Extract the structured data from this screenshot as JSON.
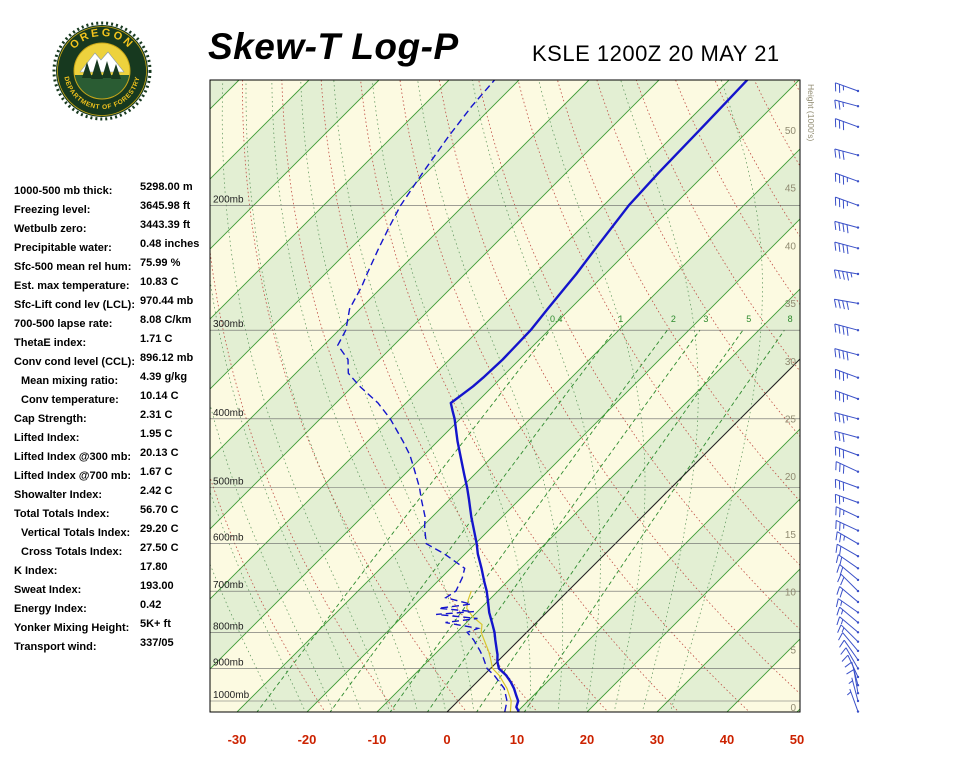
{
  "header": {
    "title": "Skew-T Log-P",
    "station": "KSLE 1200Z 20 MAY 21",
    "logo_top": "OREGON",
    "logo_bottom": "DEPARTMENT OF FORESTRY"
  },
  "indices": [
    {
      "label": "1000-500 mb thick:",
      "value": "5298.00 m",
      "indent": false
    },
    {
      "label": "Freezing level:",
      "value": "3645.98 ft",
      "indent": false
    },
    {
      "label": "Wetbulb zero:",
      "value": "3443.39 ft",
      "indent": false
    },
    {
      "label": "Precipitable water:",
      "value": "0.48 inches",
      "indent": false
    },
    {
      "label": "Sfc-500 mean rel hum:",
      "value": "75.99 %",
      "indent": false
    },
    {
      "label": "Est. max temperature:",
      "value": "10.83 C",
      "indent": false
    },
    {
      "label": "Sfc-Lift cond lev (LCL):",
      "value": "970.44 mb",
      "indent": false
    },
    {
      "label": "700-500 lapse rate:",
      "value": "8.08 C/km",
      "indent": false
    },
    {
      "label": "ThetaE index:",
      "value": "1.71 C",
      "indent": false
    },
    {
      "label": "Conv cond level (CCL):",
      "value": "896.12 mb",
      "indent": false
    },
    {
      "label": "Mean mixing ratio:",
      "value": "4.39 g/kg",
      "indent": true
    },
    {
      "label": "Conv temperature:",
      "value": "10.14 C",
      "indent": true
    },
    {
      "label": "Cap Strength:",
      "value": "2.31 C",
      "indent": false
    },
    {
      "label": "Lifted Index:",
      "value": "1.95 C",
      "indent": false
    },
    {
      "label": "Lifted Index @300 mb:",
      "value": "20.13 C",
      "indent": false
    },
    {
      "label": "Lifted Index @700 mb:",
      "value": "1.67 C",
      "indent": false
    },
    {
      "label": "Showalter Index:",
      "value": "2.42 C",
      "indent": false
    },
    {
      "label": "Total Totals Index:",
      "value": "56.70 C",
      "indent": false
    },
    {
      "label": "Vertical Totals Index:",
      "value": "29.20 C",
      "indent": true
    },
    {
      "label": "Cross Totals Index:",
      "value": "27.50 C",
      "indent": true
    },
    {
      "label": "K Index:",
      "value": "17.80",
      "indent": false
    },
    {
      "label": "Sweat Index:",
      "value": "193.00",
      "indent": false
    },
    {
      "label": "Energy Index:",
      "value": "0.42",
      "indent": false
    },
    {
      "label": "Yonker Mixing Height:",
      "value": "5K+ ft",
      "indent": false
    },
    {
      "label": "Transport wind:",
      "value": "337/05",
      "indent": false
    }
  ],
  "chart_data": {
    "type": "skewt-log-p",
    "station": "KSLE 1200Z 20 MAY 21",
    "temp_ticks": [
      -30,
      -20,
      -10,
      0,
      10,
      20,
      30,
      40,
      50
    ],
    "pressure_levels": [
      {
        "value": 200,
        "label": "200mb"
      },
      {
        "value": 300,
        "label": "300mb"
      },
      {
        "value": 400,
        "label": "400mb"
      },
      {
        "value": 500,
        "label": "500mb"
      },
      {
        "value": 600,
        "label": "600mb"
      },
      {
        "value": 700,
        "label": "700mb"
      },
      {
        "value": 800,
        "label": "800mb"
      },
      {
        "value": 900,
        "label": "900mb"
      },
      {
        "value": 1000,
        "label": "1000mb"
      }
    ],
    "height_ticks": [
      0,
      5,
      10,
      15,
      20,
      25,
      30,
      35,
      40,
      45,
      50
    ],
    "height_axis_title": "Height (1000's)",
    "mixing_ratios": [
      0.4,
      1,
      2,
      3,
      5,
      8
    ],
    "dry_adiabat_thetas": [
      -20,
      -10,
      0,
      10,
      20,
      30,
      40,
      50,
      60,
      70,
      80,
      90,
      100,
      110,
      120,
      130,
      140,
      150,
      160,
      170,
      180,
      190,
      200
    ],
    "moist_adiabat_starts": [
      -24,
      -20,
      -16,
      -12,
      -8,
      -4,
      0,
      4,
      8,
      12,
      16,
      20,
      24,
      28,
      32
    ],
    "temperature_profile": [
      [
        1035,
        10.2
      ],
      [
        1020,
        9.2
      ],
      [
        1000,
        8.6
      ],
      [
        980,
        7.4
      ],
      [
        960,
        6.2
      ],
      [
        940,
        4.8
      ],
      [
        920,
        3.2
      ],
      [
        900,
        1.2
      ],
      [
        880,
        0.0
      ],
      [
        860,
        -1.0
      ],
      [
        850,
        -1.6
      ],
      [
        820,
        -3.4
      ],
      [
        800,
        -4.6
      ],
      [
        780,
        -6.0
      ],
      [
        750,
        -8.2
      ],
      [
        720,
        -10.2
      ],
      [
        700,
        -11.6
      ],
      [
        680,
        -13.2
      ],
      [
        650,
        -15.6
      ],
      [
        620,
        -18.2
      ],
      [
        600,
        -19.8
      ],
      [
        580,
        -21.6
      ],
      [
        550,
        -24.4
      ],
      [
        520,
        -27.2
      ],
      [
        500,
        -29.2
      ],
      [
        480,
        -31.4
      ],
      [
        450,
        -34.8
      ],
      [
        430,
        -37.2
      ],
      [
        400,
        -40.8
      ],
      [
        390,
        -42.2
      ],
      [
        380,
        -43.6
      ],
      [
        370,
        -43.2
      ],
      [
        360,
        -42.8
      ],
      [
        350,
        -42.6
      ],
      [
        330,
        -42.4
      ],
      [
        300,
        -42.6
      ],
      [
        280,
        -43.2
      ],
      [
        260,
        -43.8
      ],
      [
        250,
        -44.1
      ],
      [
        230,
        -45.0
      ],
      [
        200,
        -46.4
      ],
      [
        180,
        -46.8
      ],
      [
        160,
        -47.0
      ],
      [
        145,
        -47.2
      ],
      [
        133,
        -47.4
      ]
    ],
    "dewpoint_profile": [
      [
        1035,
        8.2
      ],
      [
        1000,
        7.0
      ],
      [
        960,
        4.8
      ],
      [
        920,
        1.5
      ],
      [
        900,
        -0.5
      ],
      [
        870,
        -2.5
      ],
      [
        850,
        -4.0
      ],
      [
        820,
        -6.5
      ],
      [
        800,
        -8.5
      ],
      [
        790,
        -7.5
      ],
      [
        775,
        -13.0
      ],
      [
        765,
        -9.0
      ],
      [
        755,
        -15.5
      ],
      [
        748,
        -10.5
      ],
      [
        740,
        -16.0
      ],
      [
        730,
        -12.0
      ],
      [
        715,
        -16.5
      ],
      [
        700,
        -16.0
      ],
      [
        670,
        -17.0
      ],
      [
        650,
        -18.0
      ],
      [
        620,
        -23.0
      ],
      [
        600,
        -27.0
      ],
      [
        570,
        -29.5
      ],
      [
        550,
        -31.0
      ],
      [
        520,
        -34.0
      ],
      [
        500,
        -36.0
      ],
      [
        470,
        -39.5
      ],
      [
        450,
        -42.0
      ],
      [
        430,
        -45.0
      ],
      [
        400,
        -50.0
      ],
      [
        380,
        -54.0
      ],
      [
        360,
        -59.0
      ],
      [
        345,
        -62.5
      ],
      [
        330,
        -64.5
      ],
      [
        315,
        -68.0
      ],
      [
        300,
        -69.0
      ],
      [
        280,
        -71.5
      ],
      [
        260,
        -73.0
      ],
      [
        250,
        -74.0
      ],
      [
        230,
        -76.0
      ],
      [
        215,
        -77.5
      ],
      [
        200,
        -79.0
      ],
      [
        180,
        -80.5
      ],
      [
        160,
        -82.0
      ],
      [
        145,
        -83.0
      ],
      [
        133,
        -83.5
      ]
    ],
    "wetbulb_profile": [
      [
        1035,
        9.0
      ],
      [
        1000,
        7.6
      ],
      [
        960,
        5.2
      ],
      [
        920,
        2.2
      ],
      [
        900,
        0.3
      ],
      [
        870,
        -1.5
      ],
      [
        850,
        -2.8
      ],
      [
        820,
        -5.0
      ],
      [
        800,
        -6.5
      ],
      [
        780,
        -7.5
      ],
      [
        760,
        -10.0
      ],
      [
        740,
        -12.0
      ],
      [
        720,
        -13.0
      ],
      [
        700,
        -13.8
      ]
    ],
    "winds": [
      [
        1035,
        340,
        5
      ],
      [
        1000,
        345,
        6
      ],
      [
        975,
        350,
        8
      ],
      [
        950,
        345,
        9
      ],
      [
        925,
        335,
        10
      ],
      [
        900,
        330,
        10
      ],
      [
        875,
        325,
        12
      ],
      [
        850,
        320,
        12
      ],
      [
        825,
        315,
        13
      ],
      [
        800,
        310,
        15
      ],
      [
        775,
        310,
        15
      ],
      [
        750,
        305,
        17
      ],
      [
        725,
        310,
        18
      ],
      [
        700,
        315,
        18
      ],
      [
        675,
        310,
        20
      ],
      [
        650,
        305,
        20
      ],
      [
        625,
        300,
        22
      ],
      [
        600,
        300,
        23
      ],
      [
        575,
        295,
        25
      ],
      [
        550,
        295,
        25
      ],
      [
        525,
        290,
        27
      ],
      [
        500,
        290,
        28
      ],
      [
        475,
        295,
        30
      ],
      [
        450,
        290,
        30
      ],
      [
        425,
        285,
        32
      ],
      [
        400,
        285,
        33
      ],
      [
        375,
        290,
        35
      ],
      [
        350,
        290,
        36
      ],
      [
        325,
        285,
        38
      ],
      [
        300,
        285,
        40
      ],
      [
        275,
        280,
        42
      ],
      [
        250,
        280,
        44
      ],
      [
        230,
        285,
        40
      ],
      [
        215,
        285,
        38
      ],
      [
        200,
        290,
        36
      ],
      [
        185,
        290,
        33
      ],
      [
        170,
        285,
        30
      ],
      [
        155,
        290,
        28
      ],
      [
        145,
        285,
        26
      ],
      [
        138,
        290,
        25
      ]
    ],
    "colors": {
      "bg": "#FCFAE1",
      "band": "#E3EFD3",
      "isotherm": "#3D9B35",
      "isotherm_zero": "#222222",
      "adiabat": "#BF4D43",
      "moist": "#559055",
      "mixing": "#2E8B2E",
      "trace": "#1414CC",
      "wetbulb": "#D8C62F",
      "barb": "#3A50C8",
      "axis": "#CC2200",
      "height": "#8F8A70",
      "pressure_line": "#666666"
    }
  }
}
